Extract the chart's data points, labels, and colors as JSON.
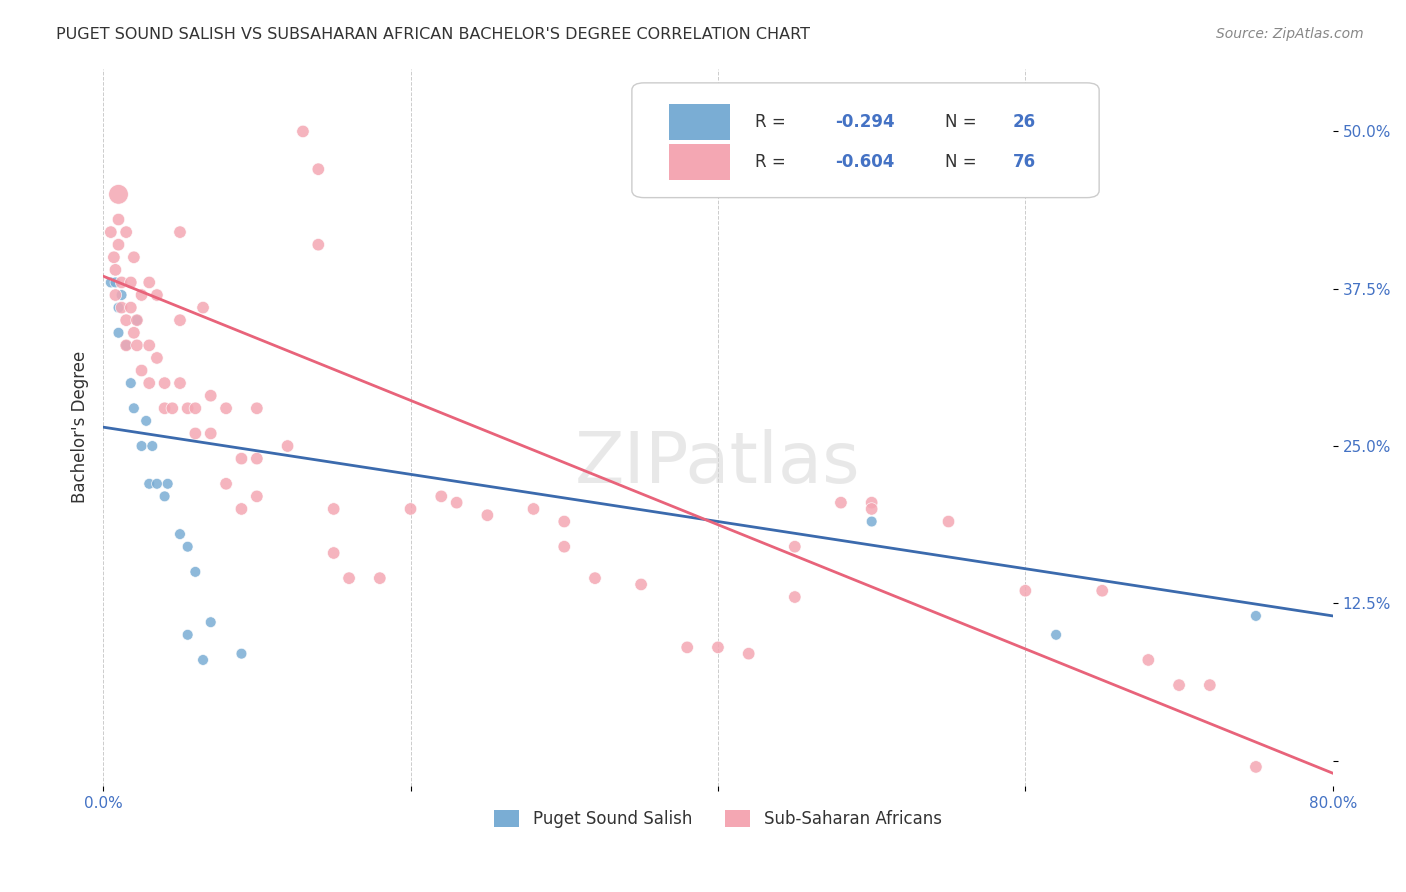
{
  "title": "PUGET SOUND SALISH VS SUBSAHARAN AFRICAN BACHELOR'S DEGREE CORRELATION CHART",
  "source": "Source: ZipAtlas.com",
  "ylabel": "Bachelor's Degree",
  "xlabel": "",
  "watermark": "ZIPatlas",
  "xlim": [
    0.0,
    0.8
  ],
  "ylim": [
    0.0,
    0.55
  ],
  "xticks": [
    0.0,
    0.2,
    0.4,
    0.6,
    0.8
  ],
  "xticklabels": [
    "0.0%",
    "",
    "",
    "",
    "80.0%"
  ],
  "yticks": [
    0.0,
    0.125,
    0.25,
    0.375,
    0.5
  ],
  "yticklabels": [
    "",
    "12.5%",
    "25.0%",
    "37.5%",
    "50.0%"
  ],
  "blue_R": "-0.294",
  "blue_N": "26",
  "pink_R": "-0.604",
  "pink_N": "76",
  "legend_label_blue": "Puget Sound Salish",
  "legend_label_pink": "Sub-Saharan Africans",
  "blue_color": "#7aadd4",
  "pink_color": "#f4a7b3",
  "blue_line_color": "#3b6aad",
  "pink_line_color": "#e8637a",
  "grid_color": "#cccccc",
  "background_color": "#ffffff",
  "blue_points": [
    [
      0.005,
      0.38
    ],
    [
      0.008,
      0.38
    ],
    [
      0.01,
      0.36
    ],
    [
      0.01,
      0.34
    ],
    [
      0.012,
      0.37
    ],
    [
      0.015,
      0.33
    ],
    [
      0.018,
      0.3
    ],
    [
      0.02,
      0.28
    ],
    [
      0.022,
      0.35
    ],
    [
      0.025,
      0.25
    ],
    [
      0.028,
      0.27
    ],
    [
      0.03,
      0.22
    ],
    [
      0.032,
      0.25
    ],
    [
      0.035,
      0.22
    ],
    [
      0.04,
      0.21
    ],
    [
      0.042,
      0.22
    ],
    [
      0.05,
      0.18
    ],
    [
      0.055,
      0.17
    ],
    [
      0.055,
      0.1
    ],
    [
      0.06,
      0.15
    ],
    [
      0.065,
      0.08
    ],
    [
      0.07,
      0.11
    ],
    [
      0.09,
      0.085
    ],
    [
      0.5,
      0.19
    ],
    [
      0.62,
      0.1
    ],
    [
      0.75,
      0.115
    ]
  ],
  "blue_sizes": [
    60,
    60,
    60,
    60,
    60,
    60,
    60,
    60,
    60,
    60,
    60,
    60,
    60,
    60,
    60,
    60,
    60,
    60,
    60,
    60,
    60,
    60,
    60,
    60,
    60,
    60
  ],
  "pink_points": [
    [
      0.005,
      0.42
    ],
    [
      0.007,
      0.4
    ],
    [
      0.008,
      0.39
    ],
    [
      0.008,
      0.37
    ],
    [
      0.01,
      0.45
    ],
    [
      0.01,
      0.43
    ],
    [
      0.01,
      0.41
    ],
    [
      0.012,
      0.38
    ],
    [
      0.012,
      0.36
    ],
    [
      0.015,
      0.42
    ],
    [
      0.015,
      0.35
    ],
    [
      0.015,
      0.33
    ],
    [
      0.018,
      0.38
    ],
    [
      0.018,
      0.36
    ],
    [
      0.02,
      0.4
    ],
    [
      0.02,
      0.34
    ],
    [
      0.022,
      0.35
    ],
    [
      0.022,
      0.33
    ],
    [
      0.025,
      0.37
    ],
    [
      0.025,
      0.31
    ],
    [
      0.03,
      0.38
    ],
    [
      0.03,
      0.33
    ],
    [
      0.03,
      0.3
    ],
    [
      0.035,
      0.37
    ],
    [
      0.035,
      0.32
    ],
    [
      0.04,
      0.3
    ],
    [
      0.04,
      0.28
    ],
    [
      0.045,
      0.28
    ],
    [
      0.05,
      0.42
    ],
    [
      0.05,
      0.35
    ],
    [
      0.05,
      0.3
    ],
    [
      0.055,
      0.28
    ],
    [
      0.06,
      0.28
    ],
    [
      0.06,
      0.26
    ],
    [
      0.065,
      0.36
    ],
    [
      0.07,
      0.29
    ],
    [
      0.07,
      0.26
    ],
    [
      0.08,
      0.28
    ],
    [
      0.08,
      0.22
    ],
    [
      0.09,
      0.24
    ],
    [
      0.09,
      0.2
    ],
    [
      0.1,
      0.28
    ],
    [
      0.1,
      0.24
    ],
    [
      0.1,
      0.21
    ],
    [
      0.12,
      0.25
    ],
    [
      0.13,
      0.5
    ],
    [
      0.14,
      0.47
    ],
    [
      0.14,
      0.41
    ],
    [
      0.15,
      0.2
    ],
    [
      0.15,
      0.165
    ],
    [
      0.16,
      0.145
    ],
    [
      0.18,
      0.145
    ],
    [
      0.2,
      0.2
    ],
    [
      0.22,
      0.21
    ],
    [
      0.23,
      0.205
    ],
    [
      0.25,
      0.195
    ],
    [
      0.28,
      0.2
    ],
    [
      0.3,
      0.19
    ],
    [
      0.3,
      0.17
    ],
    [
      0.32,
      0.145
    ],
    [
      0.35,
      0.14
    ],
    [
      0.38,
      0.09
    ],
    [
      0.4,
      0.09
    ],
    [
      0.42,
      0.085
    ],
    [
      0.45,
      0.17
    ],
    [
      0.45,
      0.13
    ],
    [
      0.48,
      0.205
    ],
    [
      0.5,
      0.205
    ],
    [
      0.5,
      0.2
    ],
    [
      0.55,
      0.19
    ],
    [
      0.6,
      0.135
    ],
    [
      0.65,
      0.135
    ],
    [
      0.68,
      0.08
    ],
    [
      0.7,
      0.06
    ],
    [
      0.72,
      0.06
    ],
    [
      0.75,
      -0.005
    ]
  ],
  "pink_sizes_base": [
    80,
    80,
    80,
    80,
    200,
    80,
    80,
    80,
    80,
    80,
    80,
    80,
    80,
    80,
    80,
    80,
    80,
    80,
    80,
    80,
    80,
    80,
    80,
    80,
    80,
    80,
    80,
    80,
    80,
    80,
    80,
    80,
    80,
    80,
    80,
    80,
    80,
    80,
    80,
    80,
    80,
    80,
    80,
    80,
    80,
    80,
    80,
    80,
    80,
    80,
    80,
    80,
    80,
    80,
    80,
    80,
    80,
    80,
    80,
    80,
    80,
    80,
    80,
    80,
    80,
    80,
    80,
    80,
    80,
    80,
    80,
    80,
    80,
    80,
    80,
    80
  ]
}
